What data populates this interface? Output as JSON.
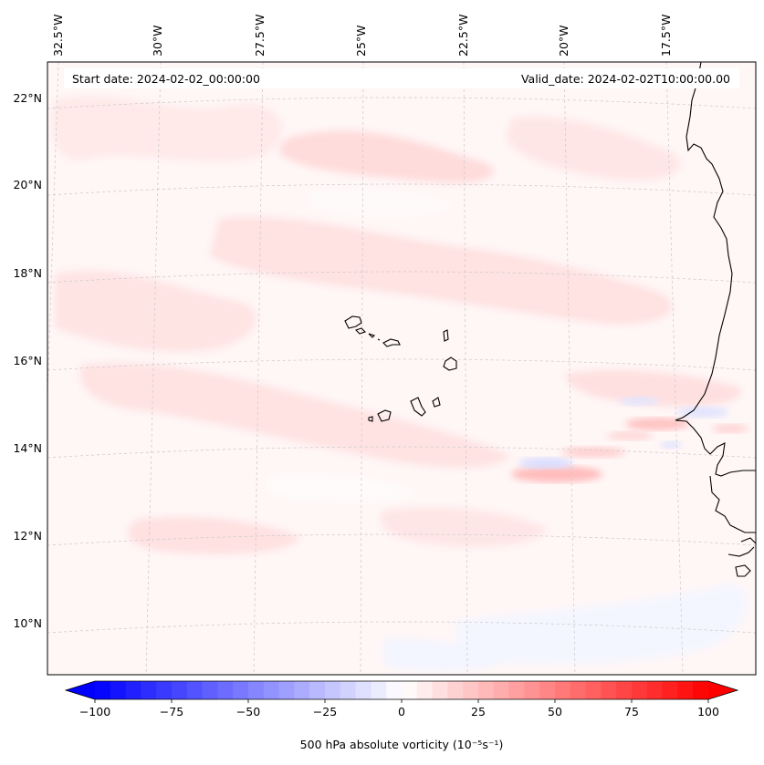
{
  "header": {
    "start_date": "Start date: 2024-02-02_00:00:00",
    "valid_date": "Valid_date: 2024-02-02T10:00:00.00"
  },
  "map": {
    "lon_labels": [
      "32.5°W",
      "30°W",
      "27.5°W",
      "25°W",
      "22.5°W",
      "20°W",
      "17.5°W"
    ],
    "lat_labels": [
      "22°N",
      "20°N",
      "18°N",
      "16°N",
      "14°N",
      "12°N",
      "10°N"
    ]
  },
  "colorbar": {
    "ticks": [
      "−100",
      "−75",
      "−50",
      "−25",
      "0",
      "25",
      "50",
      "75",
      "100"
    ],
    "label": "500 hPa absolute vorticity (10⁻⁵s⁻¹)",
    "min_color": "#0000ff",
    "mid_color": "#ffffff",
    "max_color": "#ff0000"
  }
}
